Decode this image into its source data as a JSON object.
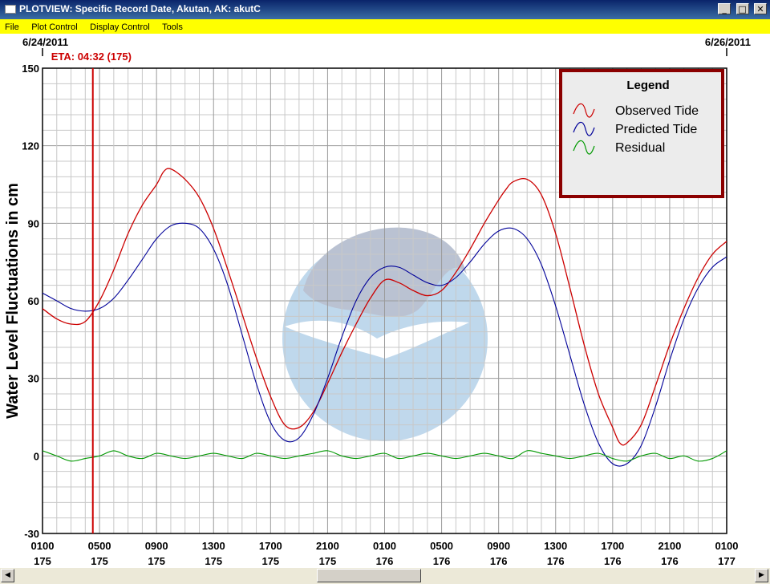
{
  "window": {
    "title": "PLOTVIEW: Specific Record Date, Akutan, AK: akutC",
    "min_label": "_",
    "max_label": "□",
    "close_label": "✕"
  },
  "menu": {
    "items": [
      "File",
      "Plot Control",
      "Display Control",
      "Tools"
    ]
  },
  "scrollbar": {
    "left_label": "◀",
    "right_label": "▶"
  },
  "colors": {
    "observed": "#cc0000",
    "predicted": "#000099",
    "residual": "#009900",
    "eta_line": "#cc0000",
    "legend_border": "#8b0000"
  },
  "icons": {
    "app": "window-icon",
    "watermark": "noaa-logo"
  },
  "chart_data": {
    "type": "line",
    "ylabel": "Water Level Fluctuations in cm",
    "ylim": [
      -30,
      150
    ],
    "yticks": [
      -30,
      0,
      30,
      60,
      90,
      120,
      150
    ],
    "xlim": [
      0,
      48
    ],
    "xlabel": "",
    "grid": true,
    "date_labels": [
      {
        "x": 0,
        "text": "6/24/2011"
      },
      {
        "x": 48,
        "text": "6/26/2011"
      }
    ],
    "eta": {
      "x": 3.53,
      "label": "ETA: 04:32 (175)"
    },
    "x_ticks": [
      {
        "x": 0,
        "time": "0100",
        "day": "175"
      },
      {
        "x": 4,
        "time": "0500",
        "day": "175"
      },
      {
        "x": 8,
        "time": "0900",
        "day": "175"
      },
      {
        "x": 12,
        "time": "1300",
        "day": "175"
      },
      {
        "x": 16,
        "time": "1700",
        "day": "175"
      },
      {
        "x": 20,
        "time": "2100",
        "day": "175"
      },
      {
        "x": 24,
        "time": "0100",
        "day": "176"
      },
      {
        "x": 28,
        "time": "0500",
        "day": "176"
      },
      {
        "x": 32,
        "time": "0900",
        "day": "176"
      },
      {
        "x": 36,
        "time": "1300",
        "day": "176"
      },
      {
        "x": 40,
        "time": "1700",
        "day": "176"
      },
      {
        "x": 44,
        "time": "2100",
        "day": "176"
      },
      {
        "x": 48,
        "time": "0100",
        "day": "177"
      }
    ],
    "legend": {
      "title": "Legend",
      "position": "top-right",
      "entries": [
        "Observed Tide",
        "Predicted Tide",
        "Residual"
      ]
    },
    "series": [
      {
        "name": "Observed Tide",
        "x": [
          0,
          1,
          2,
          3,
          4,
          5,
          6,
          7,
          8,
          8.5,
          9,
          10,
          11,
          12,
          13,
          14,
          15,
          16,
          17,
          18,
          19,
          20,
          21,
          22,
          23,
          24,
          25,
          26,
          27,
          28,
          29,
          30,
          31,
          32,
          32.5,
          33,
          34,
          35,
          36,
          37,
          38,
          39,
          40,
          40.5,
          41,
          42,
          43,
          44,
          45,
          46,
          47,
          48
        ],
        "y": [
          57,
          53,
          51,
          52,
          60,
          72,
          86,
          97,
          105,
          110,
          111,
          107,
          100,
          88,
          72,
          55,
          38,
          23,
          12,
          11,
          17,
          28,
          40,
          51,
          61,
          68,
          67,
          64,
          62,
          64,
          71,
          80,
          90,
          99,
          103,
          106,
          107,
          101,
          86,
          65,
          43,
          24,
          11,
          5,
          5,
          12,
          27,
          43,
          57,
          69,
          78,
          83
        ]
      },
      {
        "name": "Predicted Tide",
        "x": [
          0,
          1,
          2,
          3,
          4,
          5,
          6,
          7,
          8,
          9,
          10,
          11,
          12,
          13,
          14,
          15,
          16,
          17,
          18,
          19,
          20,
          21,
          22,
          23,
          24,
          25,
          26,
          27,
          28,
          29,
          30,
          31,
          32,
          33,
          34,
          35,
          36,
          37,
          38,
          39,
          40,
          41,
          42,
          43,
          44,
          45,
          46,
          47,
          48
        ],
        "y": [
          63,
          60,
          57,
          56,
          57,
          61,
          68,
          76,
          84,
          89,
          90,
          88,
          80,
          66,
          47,
          28,
          13,
          6,
          7,
          16,
          30,
          46,
          60,
          69,
          73,
          73,
          70,
          67,
          66,
          69,
          75,
          82,
          87,
          88,
          84,
          74,
          58,
          39,
          20,
          5,
          -3,
          -3,
          4,
          19,
          37,
          53,
          65,
          73,
          77
        ]
      },
      {
        "name": "Residual",
        "x": [
          0,
          1,
          2,
          3,
          4,
          5,
          6,
          7,
          8,
          9,
          10,
          11,
          12,
          13,
          14,
          15,
          16,
          17,
          18,
          19,
          20,
          21,
          22,
          23,
          24,
          25,
          26,
          27,
          28,
          29,
          30,
          31,
          32,
          33,
          34,
          35,
          36,
          37,
          38,
          39,
          40,
          41,
          42,
          43,
          44,
          45,
          46,
          47,
          48
        ],
        "y": [
          2,
          0,
          -2,
          -1,
          0,
          2,
          0,
          -1,
          1,
          0,
          -1,
          0,
          1,
          0,
          -1,
          1,
          0,
          -1,
          0,
          1,
          2,
          0,
          -1,
          0,
          1,
          -1,
          0,
          1,
          0,
          -1,
          0,
          1,
          0,
          -1,
          2,
          1,
          0,
          -1,
          0,
          1,
          -1,
          -2,
          0,
          1,
          -1,
          0,
          -2,
          -1,
          2
        ]
      }
    ]
  }
}
